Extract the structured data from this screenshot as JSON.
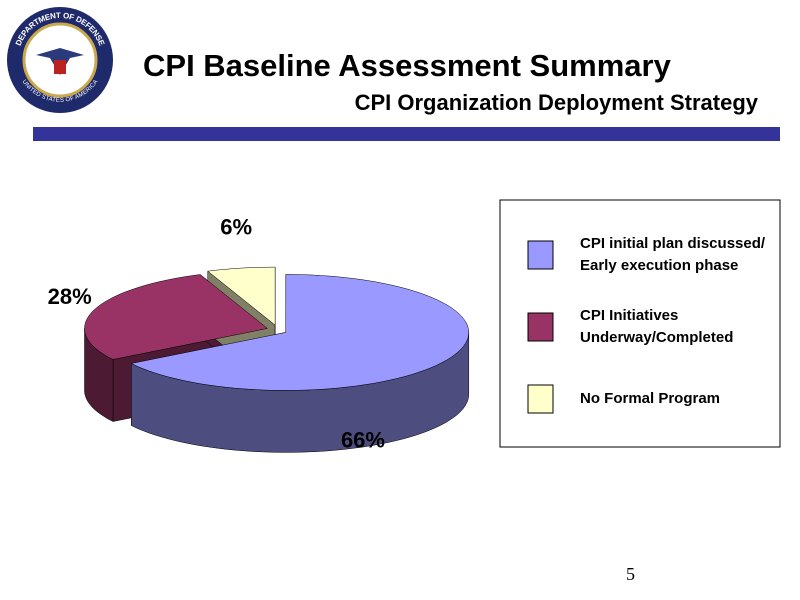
{
  "header": {
    "title": "CPI Baseline Assessment Summary",
    "subtitle": "CPI Organization Deployment Strategy",
    "logo_top": "DEPARTMENT OF DEFENSE",
    "logo_bottom": "UNITED STATES OF AMERICA"
  },
  "chart_data": {
    "type": "pie",
    "categories": [
      "CPI initial plan discussed/\nEarly execution phase",
      "CPI Initiatives\nUnderway/Completed",
      "No Formal Program"
    ],
    "values": [
      66,
      28,
      6
    ],
    "value_labels": [
      "66%",
      "28%",
      "6%"
    ],
    "colors": [
      "#9999ff",
      "#993366",
      "#ffffcc"
    ],
    "legend": "right"
  },
  "page_number": "5"
}
